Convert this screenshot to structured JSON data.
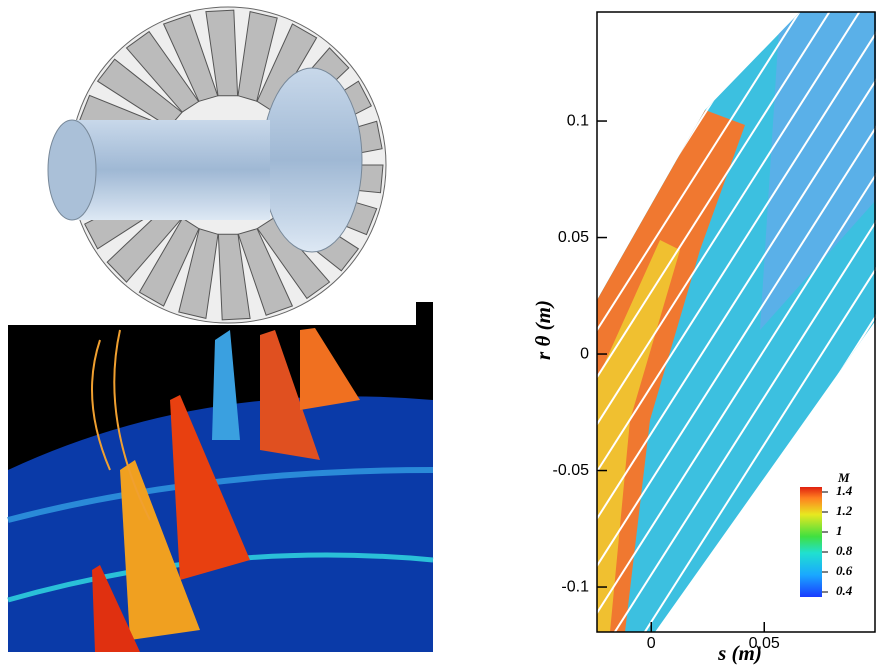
{
  "chart_data": {
    "type": "contour",
    "xlabel": "s (m)",
    "ylabel": "r θ (m)",
    "xlim": [
      -0.024,
      0.099
    ],
    "ylim": [
      -0.1193,
      0.1468
    ],
    "xticks": [
      0,
      {
        "value": 0.05,
        "label": "0,05"
      }
    ],
    "yticks": [
      -0.1,
      -0.05,
      0,
      0.05,
      0.1
    ],
    "colorbar": {
      "title": "M",
      "lim": [
        0.35,
        1.45
      ],
      "ticks": [
        0.4,
        0.6,
        0.8,
        1,
        1.2,
        1.4
      ]
    }
  }
}
